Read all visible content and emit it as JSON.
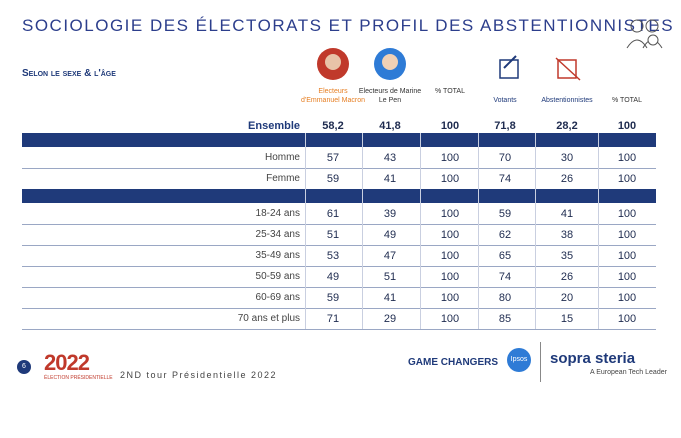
{
  "header": {
    "title": "SOCIOLOGIE DES ÉLECTORATS ET PROFIL DES ABSTENTIONNISTES",
    "section": "Selon le sexe & l'âge"
  },
  "table": {
    "columns": [
      "Electeurs d'Emmanuel Macron",
      "Electeurs de Marine Le Pen",
      "% TOTAL",
      "Votants",
      "Abstentionnistes",
      "% TOTAL"
    ],
    "total": {
      "label": "Ensemble",
      "values": [
        "58,2",
        "41,8",
        "100",
        "71,8",
        "28,2",
        "100"
      ]
    },
    "groups": [
      [
        {
          "label": "Homme",
          "values": [
            "57",
            "43",
            "100",
            "70",
            "30",
            "100"
          ]
        },
        {
          "label": "Femme",
          "values": [
            "59",
            "41",
            "100",
            "74",
            "26",
            "100"
          ]
        }
      ],
      [
        {
          "label": "18-24 ans",
          "values": [
            "61",
            "39",
            "100",
            "59",
            "41",
            "100"
          ]
        },
        {
          "label": "25-34 ans",
          "values": [
            "51",
            "49",
            "100",
            "62",
            "38",
            "100"
          ]
        },
        {
          "label": "35-49 ans",
          "values": [
            "53",
            "47",
            "100",
            "65",
            "35",
            "100"
          ]
        },
        {
          "label": "50-59 ans",
          "values": [
            "49",
            "51",
            "100",
            "74",
            "26",
            "100"
          ]
        },
        {
          "label": "60-69 ans",
          "values": [
            "59",
            "41",
            "100",
            "80",
            "20",
            "100"
          ]
        },
        {
          "label": "70 ans et plus",
          "values": [
            "71",
            "29",
            "100",
            "85",
            "15",
            "100"
          ]
        }
      ]
    ]
  },
  "footer": {
    "page": "6",
    "logo": "2022",
    "logo_sub": "ÉLECTION PRÉSIDENTIELLE",
    "tour": "2ND tour Présidentielle 2022",
    "game_changers": "GAME CHANGERS",
    "ipsos": "Ipsos",
    "sopra": "sopra steria",
    "sopra_sub": "A European Tech Leader"
  }
}
